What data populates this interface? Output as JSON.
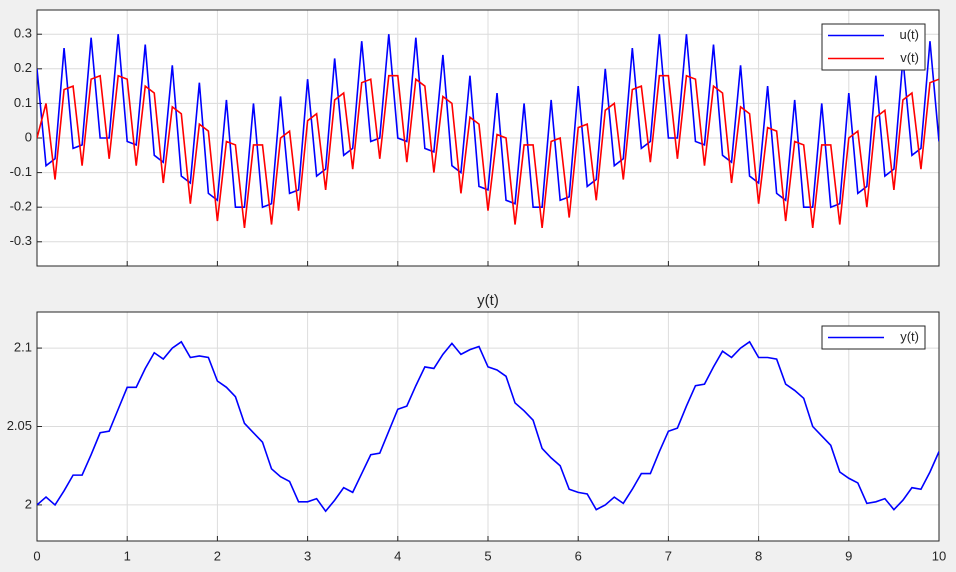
{
  "chart_data": [
    {
      "type": "line",
      "x": [
        0,
        0.1,
        0.2,
        0.3,
        0.4,
        0.5,
        0.6,
        0.7,
        0.8,
        0.9,
        1,
        1.1,
        1.2,
        1.3,
        1.4,
        1.5,
        1.6,
        1.7,
        1.8,
        1.9,
        2,
        2.1,
        2.2,
        2.3,
        2.4,
        2.5,
        2.6,
        2.7,
        2.8,
        2.9,
        3,
        3.1,
        3.2,
        3.3,
        3.4,
        3.5,
        3.6,
        3.7,
        3.8,
        3.9,
        4,
        4.1,
        4.2,
        4.3,
        4.4,
        4.5,
        4.6,
        4.7,
        4.8,
        4.9,
        5,
        5.1,
        5.2,
        5.3,
        5.4,
        5.5,
        5.6,
        5.7,
        5.8,
        5.9,
        6,
        6.1,
        6.2,
        6.3,
        6.4,
        6.5,
        6.6,
        6.7,
        6.8,
        6.9,
        7,
        7.1,
        7.2,
        7.3,
        7.4,
        7.5,
        7.6,
        7.7,
        7.8,
        7.9,
        8,
        8.1,
        8.2,
        8.3,
        8.4,
        8.5,
        8.6,
        8.7,
        8.8,
        8.9,
        9,
        9.1,
        9.2,
        9.3,
        9.4,
        9.5,
        9.6,
        9.7,
        9.8,
        9.9,
        10
      ],
      "series": [
        {
          "name": "u(t)",
          "color": "#0000ff",
          "values": [
            0.2,
            -0.08,
            -0.06,
            0.26,
            -0.03,
            -0.02,
            0.29,
            0,
            0,
            0.3,
            -0.01,
            -0.02,
            0.27,
            -0.05,
            -0.07,
            0.21,
            -0.11,
            -0.13,
            0.16,
            -0.16,
            -0.18,
            0.11,
            -0.2,
            -0.2,
            0.1,
            -0.2,
            -0.19,
            0.12,
            -0.16,
            -0.15,
            0.17,
            -0.11,
            -0.09,
            0.23,
            -0.05,
            -0.03,
            0.28,
            -0.01,
            0,
            0.3,
            0,
            -0.01,
            0.29,
            -0.03,
            -0.04,
            0.24,
            -0.08,
            -0.1,
            0.18,
            -0.14,
            -0.15,
            0.13,
            -0.18,
            -0.19,
            0.1,
            -0.2,
            -0.2,
            0.11,
            -0.18,
            -0.17,
            0.15,
            -0.14,
            -0.12,
            0.2,
            -0.08,
            -0.06,
            0.26,
            -0.03,
            -0.01,
            0.3,
            0,
            0,
            0.3,
            -0.01,
            -0.02,
            0.27,
            -0.05,
            -0.07,
            0.21,
            -0.11,
            -0.13,
            0.15,
            -0.16,
            -0.18,
            0.11,
            -0.2,
            -0.2,
            0.1,
            -0.2,
            -0.19,
            0.13,
            -0.16,
            -0.14,
            0.18,
            -0.11,
            -0.09,
            0.23,
            -0.05,
            -0.03,
            0.28,
            -0.01
          ]
        },
        {
          "name": "v(t)",
          "color": "#ff0000",
          "values": [
            0,
            0.1,
            -0.12,
            0.14,
            0.15,
            -0.08,
            0.17,
            0.18,
            -0.06,
            0.18,
            0.17,
            -0.08,
            0.15,
            0.13,
            -0.13,
            0.09,
            0.07,
            -0.19,
            0.04,
            0.02,
            -0.24,
            -0.01,
            -0.02,
            -0.26,
            -0.02,
            -0.02,
            -0.25,
            0,
            0.02,
            -0.21,
            0.05,
            0.07,
            -0.15,
            0.11,
            0.13,
            -0.09,
            0.16,
            0.17,
            -0.06,
            0.18,
            0.18,
            -0.07,
            0.17,
            0.15,
            -0.1,
            0.12,
            0.1,
            -0.16,
            0.06,
            0.04,
            -0.21,
            0.01,
            0,
            -0.25,
            -0.02,
            -0.02,
            -0.26,
            -0.01,
            0,
            -0.23,
            0.03,
            0.04,
            -0.18,
            0.08,
            0.1,
            -0.12,
            0.14,
            0.15,
            -0.07,
            0.18,
            0.18,
            -0.06,
            0.18,
            0.17,
            -0.08,
            0.15,
            0.13,
            -0.13,
            0.09,
            0.07,
            -0.19,
            0.03,
            0.02,
            -0.24,
            -0.01,
            -0.02,
            -0.26,
            -0.02,
            -0.02,
            -0.25,
            0,
            0.02,
            -0.2,
            0.06,
            0.08,
            -0.15,
            0.11,
            0.13,
            -0.09,
            0.16,
            0.17
          ]
        }
      ],
      "xlim": [
        0,
        10
      ],
      "ylim": [
        -0.37,
        0.37
      ],
      "xticks": [
        0,
        1,
        2,
        3,
        4,
        5,
        6,
        7,
        8,
        9,
        10
      ],
      "yticks": [
        -0.3,
        -0.2,
        -0.1,
        0,
        0.1,
        0.2,
        0.3
      ],
      "grid": true,
      "legend": "northeast"
    },
    {
      "type": "line",
      "title": "y(t)",
      "x": [
        0,
        0.1,
        0.2,
        0.3,
        0.4,
        0.5,
        0.6,
        0.7,
        0.8,
        0.9,
        1,
        1.1,
        1.2,
        1.3,
        1.4,
        1.5,
        1.6,
        1.7,
        1.8,
        1.9,
        2,
        2.1,
        2.2,
        2.3,
        2.4,
        2.5,
        2.6,
        2.7,
        2.8,
        2.9,
        3,
        3.1,
        3.2,
        3.3,
        3.4,
        3.5,
        3.6,
        3.7,
        3.8,
        3.9,
        4,
        4.1,
        4.2,
        4.3,
        4.4,
        4.5,
        4.6,
        4.7,
        4.8,
        4.9,
        5,
        5.1,
        5.2,
        5.3,
        5.4,
        5.5,
        5.6,
        5.7,
        5.8,
        5.9,
        6,
        6.1,
        6.2,
        6.3,
        6.4,
        6.5,
        6.6,
        6.7,
        6.8,
        6.9,
        7,
        7.1,
        7.2,
        7.3,
        7.4,
        7.5,
        7.6,
        7.7,
        7.8,
        7.9,
        8,
        8.1,
        8.2,
        8.3,
        8.4,
        8.5,
        8.6,
        8.7,
        8.8,
        8.9,
        9,
        9.1,
        9.2,
        9.3,
        9.4,
        9.5,
        9.6,
        9.7,
        9.8,
        9.9,
        10
      ],
      "series": [
        {
          "name": "y(t)",
          "color": "#0000ff",
          "values": [
            2,
            2.005,
            2,
            2.009,
            2.019,
            2.019,
            2.032,
            2.046,
            2.047,
            2.061,
            2.075,
            2.075,
            2.087,
            2.097,
            2.093,
            2.1,
            2.104,
            2.094,
            2.095,
            2.094,
            2.079,
            2.075,
            2.069,
            2.052,
            2.046,
            2.04,
            2.023,
            2.018,
            2.015,
            2.002,
            2.002,
            2.004,
            1.996,
            2.003,
            2.011,
            2.008,
            2.02,
            2.032,
            2.033,
            2.047,
            2.061,
            2.063,
            2.076,
            2.088,
            2.087,
            2.096,
            2.103,
            2.096,
            2.099,
            2.101,
            2.088,
            2.086,
            2.082,
            2.065,
            2.06,
            2.054,
            2.036,
            2.03,
            2.025,
            2.01,
            2.008,
            2.007,
            1.997,
            2,
            2.005,
            2.001,
            2.01,
            2.02,
            2.02,
            2.034,
            2.047,
            2.049,
            2.063,
            2.076,
            2.077,
            2.088,
            2.098,
            2.094,
            2.1,
            2.104,
            2.094,
            2.094,
            2.093,
            2.077,
            2.073,
            2.068,
            2.05,
            2.044,
            2.038,
            2.021,
            2.017,
            2.014,
            2.001,
            2.002,
            2.004,
            1.997,
            2.003,
            2.011,
            2.01,
            2.021,
            2.034
          ]
        }
      ],
      "xlim": [
        0,
        10
      ],
      "ylim": [
        1.977,
        2.123
      ],
      "xticks": [
        0,
        1,
        2,
        3,
        4,
        5,
        6,
        7,
        8,
        9,
        10
      ],
      "yticks": [
        2,
        2.05,
        2.1
      ],
      "grid": true,
      "legend": "northeast"
    }
  ]
}
